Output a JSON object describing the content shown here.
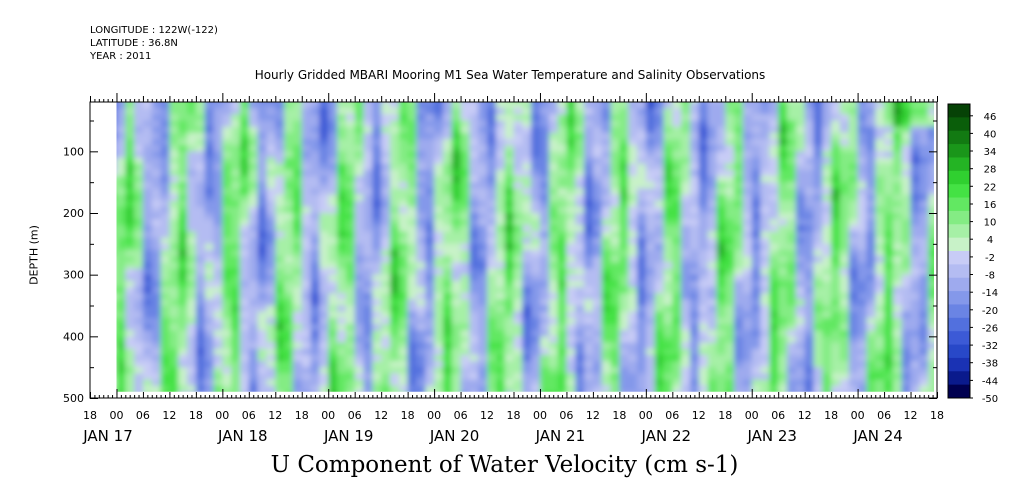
{
  "header": {
    "longitude": "LONGITUDE : 122W(-122)",
    "latitude": "LATITUDE : 36.8N",
    "year": "YEAR : 2011"
  },
  "chart_data": {
    "type": "heatmap",
    "title": "Hourly Gridded MBARI Mooring M1 Sea Water Temperature and Salinity Observations",
    "bottom_title": "U Component of Water Velocity (cm s-1)",
    "ylabel": "DEPTH (m)",
    "xlabel": "",
    "ylim": [
      500,
      20
    ],
    "y_inverted": true,
    "y_ticks": [
      100,
      200,
      300,
      400,
      500
    ],
    "x_range_hours": [
      -6,
      186
    ],
    "data_start_hour": 0,
    "data_depth_range": [
      20,
      490
    ],
    "x_hour_labels": [
      "18",
      "00",
      "06",
      "12",
      "18",
      "00",
      "06",
      "12",
      "18",
      "00",
      "06",
      "12",
      "18",
      "00",
      "06",
      "12",
      "18",
      "00",
      "06",
      "12",
      "18",
      "00",
      "06",
      "12",
      "18",
      "00",
      "06",
      "12",
      "18",
      "00",
      "06",
      "12",
      "18"
    ],
    "x_day_labels": [
      "JAN 17",
      "JAN 18",
      "JAN 19",
      "JAN 20",
      "JAN 21",
      "JAN 22",
      "JAN 23",
      "JAN 24"
    ],
    "colorbar": {
      "ticks": [
        46,
        40,
        34,
        28,
        22,
        16,
        10,
        4,
        -2,
        -8,
        -14,
        -20,
        -26,
        -32,
        -38,
        -44,
        -50
      ],
      "range": [
        -50,
        50
      ],
      "colors_negative": [
        "#000050",
        "#0a1a8c",
        "#1a32b4",
        "#2848c8",
        "#3c5ad6",
        "#5270de",
        "#6a84e4",
        "#8498ea",
        "#9eaaee",
        "#b4bcf2",
        "#c8ccf6"
      ],
      "colors_positive": [
        "#c8f2c8",
        "#a6f0a6",
        "#84ec84",
        "#62e862",
        "#44e244",
        "#30d030",
        "#24b424",
        "#1a961a",
        "#127a12",
        "#0a5e0a",
        "#064206"
      ]
    },
    "pattern_note": "alternating vertical bands of positive (green) and negative (blue) velocity"
  }
}
